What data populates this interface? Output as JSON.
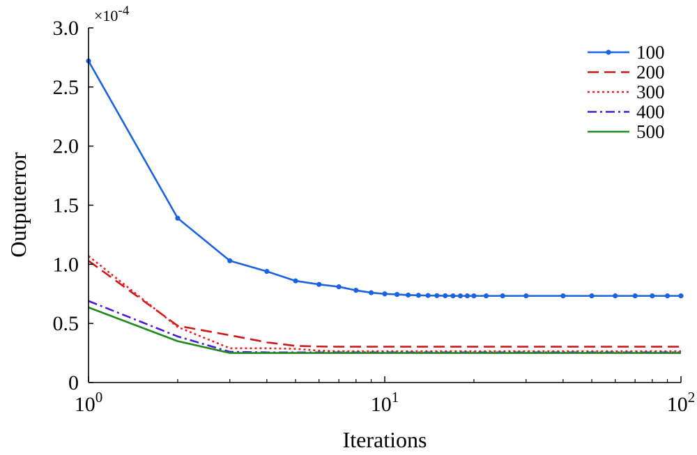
{
  "chart_data": {
    "type": "line",
    "title": "",
    "xlabel": "Iterations",
    "ylabel": "Outputerror",
    "xscale": "log",
    "xlim": [
      1,
      100
    ],
    "ylim": [
      0,
      3.0
    ],
    "y_multiplier_label": "×10-4",
    "y_multiplier": {
      "base": "×10",
      "exp": "-4"
    },
    "yticks": [
      "0",
      "0.5",
      "1.0",
      "1.5",
      "2.0",
      "2.5",
      "3.0"
    ],
    "xticks": [
      {
        "base": "10",
        "exp": "0"
      },
      {
        "base": "10",
        "exp": "1"
      },
      {
        "base": "10",
        "exp": "2"
      }
    ],
    "legend_position": "top-right",
    "grid": false,
    "series": [
      {
        "name": "100",
        "color": "#1a62e0",
        "style": "solid-markers",
        "x": [
          1,
          2,
          3,
          4,
          5,
          6,
          7,
          8,
          9,
          10,
          11,
          12,
          13,
          14,
          15,
          16,
          17,
          18,
          19,
          20,
          22,
          25,
          30,
          40,
          50,
          60,
          70,
          80,
          90,
          100
        ],
        "y": [
          2.72,
          1.39,
          1.03,
          0.94,
          0.86,
          0.83,
          0.81,
          0.78,
          0.76,
          0.75,
          0.745,
          0.74,
          0.738,
          0.736,
          0.735,
          0.734,
          0.733,
          0.733,
          0.733,
          0.733,
          0.733,
          0.733,
          0.733,
          0.733,
          0.733,
          0.733,
          0.733,
          0.733,
          0.733,
          0.733
        ]
      },
      {
        "name": "200",
        "color": "#cc1a1a",
        "style": "dashed",
        "x": [
          1,
          2,
          3,
          4,
          5,
          6,
          7,
          8,
          10,
          20,
          50,
          100
        ],
        "y": [
          1.03,
          0.48,
          0.4,
          0.34,
          0.31,
          0.305,
          0.303,
          0.303,
          0.303,
          0.303,
          0.303,
          0.303
        ]
      },
      {
        "name": "300",
        "color": "#ee1c24",
        "style": "dotted",
        "x": [
          1,
          2,
          3,
          4,
          5,
          6,
          7,
          8,
          10,
          20,
          50,
          100
        ],
        "y": [
          1.07,
          0.47,
          0.29,
          0.29,
          0.285,
          0.27,
          0.265,
          0.265,
          0.265,
          0.265,
          0.265,
          0.265
        ]
      },
      {
        "name": "400",
        "color": "#4a1ad8",
        "style": "dashdot",
        "x": [
          1,
          2,
          3,
          4,
          5,
          10,
          20,
          50,
          100
        ],
        "y": [
          0.69,
          0.39,
          0.26,
          0.255,
          0.255,
          0.255,
          0.255,
          0.255,
          0.255
        ]
      },
      {
        "name": "500",
        "color": "#1d8a1d",
        "style": "solid",
        "x": [
          1,
          2,
          3,
          4,
          5,
          10,
          20,
          50,
          100
        ],
        "y": [
          0.635,
          0.35,
          0.25,
          0.25,
          0.25,
          0.25,
          0.25,
          0.25,
          0.25
        ]
      }
    ]
  }
}
